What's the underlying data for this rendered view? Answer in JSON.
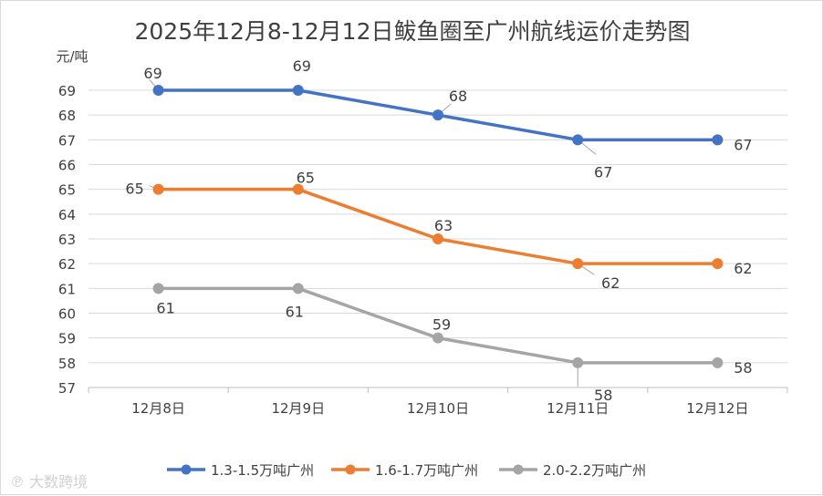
{
  "chart_data": {
    "type": "line",
    "title": "2025年12月8-12月12日鲅鱼圈至广州航线运价走势图",
    "ylabel": "元/吨",
    "xlabel": "",
    "categories": [
      "12月8日",
      "12月9日",
      "12月10日",
      "12月11日",
      "12月12日"
    ],
    "ylim": [
      57,
      69
    ],
    "yticks": [
      "57",
      "58",
      "59",
      "60",
      "61",
      "62",
      "63",
      "64",
      "65",
      "66",
      "67",
      "68",
      "69"
    ],
    "grid": true,
    "legend_position": "bottom",
    "series": [
      {
        "name": "1.3-1.5万吨广州",
        "color": "#4472c4",
        "values": [
          69,
          69,
          68,
          67,
          67
        ],
        "labels": [
          "69",
          "69",
          "68",
          "67",
          "67"
        ]
      },
      {
        "name": "1.6-1.7万吨广州",
        "color": "#ed7d31",
        "values": [
          65,
          65,
          63,
          62,
          62
        ],
        "labels": [
          "65",
          "65",
          "63",
          "62",
          "62"
        ]
      },
      {
        "name": "2.0-2.2万吨广州",
        "color": "#a5a5a5",
        "values": [
          61,
          61,
          59,
          58,
          58
        ],
        "labels": [
          "61",
          "61",
          "59",
          "58",
          "58"
        ]
      }
    ]
  },
  "watermark": "大数跨境"
}
